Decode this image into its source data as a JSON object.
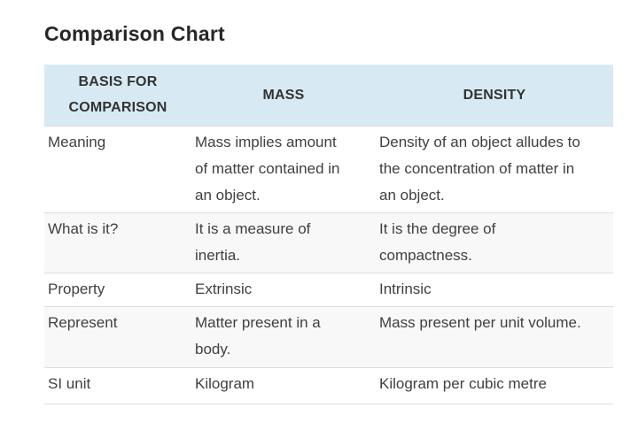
{
  "page": {
    "title": "Comparison Chart"
  },
  "theme": {
    "header_bg": "#d7eaf3",
    "alt_row_bg": "#f8f8f8",
    "border": "#dddddd",
    "text": "#404040",
    "title": "#262626"
  },
  "table": {
    "columns": [
      "BASIS FOR COMPARISON",
      "MASS",
      "DENSITY"
    ],
    "rows": [
      {
        "basis": "Meaning",
        "mass": "Mass implies amount of matter contained in an object.",
        "density": "Density of an object alludes to the concentration of matter in an object."
      },
      {
        "basis": "What is it?",
        "mass": "It is a measure of inertia.",
        "density": "It is the degree of compactness."
      },
      {
        "basis": "Property",
        "mass": "Extrinsic",
        "density": "Intrinsic"
      },
      {
        "basis": "Represent",
        "mass": "Matter present in a body.",
        "density": "Mass present per unit volume."
      },
      {
        "basis": "SI unit",
        "mass": "Kilogram",
        "density": "Kilogram per cubic metre"
      }
    ]
  }
}
